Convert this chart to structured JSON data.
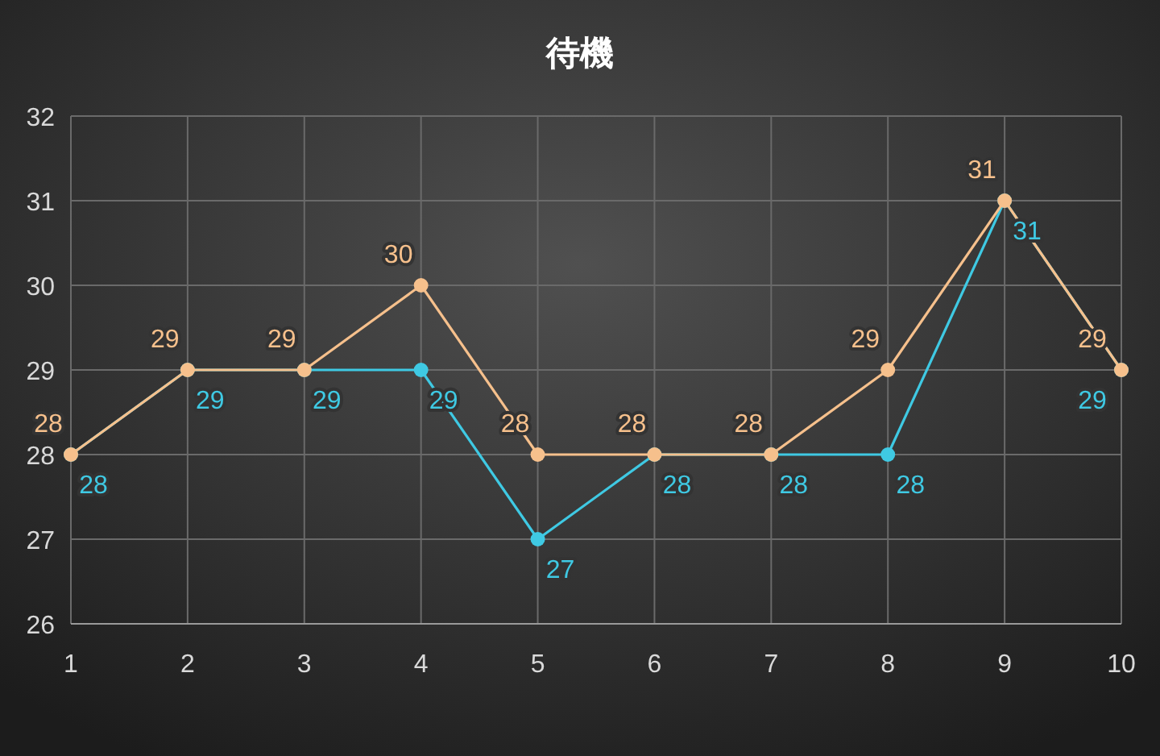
{
  "chart_data": {
    "type": "line",
    "title": "待機",
    "x": [
      1,
      2,
      3,
      4,
      5,
      6,
      7,
      8,
      9,
      10
    ],
    "xlim": [
      1,
      10
    ],
    "xticks": [
      1,
      2,
      3,
      4,
      5,
      6,
      7,
      8,
      9,
      10
    ],
    "ylim": [
      26,
      32
    ],
    "yticks": [
      26,
      27,
      28,
      29,
      30,
      31,
      32
    ],
    "series": [
      {
        "color": "#3fc9e3",
        "values": [
          28,
          29,
          29,
          29,
          27,
          28,
          28,
          28,
          31,
          29
        ]
      },
      {
        "color": "#f6c08c",
        "values": [
          28,
          29,
          29,
          30,
          28,
          28,
          28,
          29,
          31,
          29
        ]
      }
    ],
    "grid": true,
    "marker": "circle",
    "line_style": "solid",
    "data_labels": true
  }
}
